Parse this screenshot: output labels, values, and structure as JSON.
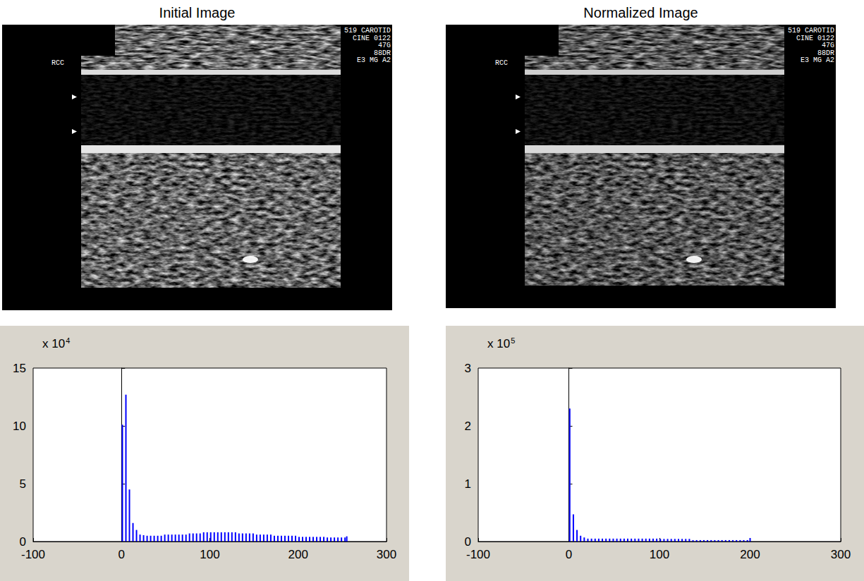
{
  "images": [
    {
      "title": "Initial Image",
      "overlay_text": [
        "519 CAROTID",
        "CINE 0122",
        "47G",
        "88DR",
        "E3 MG A2"
      ],
      "side_label": "RCC"
    },
    {
      "title": "Normalized Image",
      "overlay_text": [
        "519 CAROTID",
        "CINE 0122",
        "47G",
        "88DR",
        "E3 MG A2"
      ],
      "side_label": "RCC"
    }
  ],
  "chart_data": [
    {
      "type": "bar",
      "y_multiplier": {
        "base": "x 10",
        "exponent": 4
      },
      "x": [
        1,
        5,
        9,
        13,
        17,
        21,
        25,
        29,
        33,
        37,
        41,
        45,
        49,
        53,
        57,
        61,
        65,
        69,
        73,
        77,
        81,
        85,
        89,
        93,
        97,
        101,
        105,
        109,
        113,
        117,
        121,
        125,
        129,
        133,
        137,
        141,
        145,
        149,
        153,
        157,
        161,
        165,
        169,
        173,
        177,
        181,
        185,
        189,
        193,
        197,
        201,
        205,
        209,
        213,
        217,
        221,
        225,
        229,
        233,
        237,
        241,
        245,
        249,
        253,
        255
      ],
      "values": [
        10.1,
        12.7,
        4.5,
        1.6,
        1.0,
        0.6,
        0.55,
        0.5,
        0.5,
        0.5,
        0.5,
        0.5,
        0.6,
        0.6,
        0.6,
        0.6,
        0.6,
        0.6,
        0.6,
        0.7,
        0.7,
        0.7,
        0.7,
        0.8,
        0.8,
        0.8,
        0.8,
        0.8,
        0.8,
        0.8,
        0.8,
        0.8,
        0.8,
        0.7,
        0.7,
        0.7,
        0.7,
        0.7,
        0.6,
        0.6,
        0.6,
        0.6,
        0.6,
        0.5,
        0.5,
        0.5,
        0.5,
        0.5,
        0.5,
        0.5,
        0.4,
        0.4,
        0.4,
        0.4,
        0.4,
        0.4,
        0.4,
        0.4,
        0.35,
        0.35,
        0.35,
        0.35,
        0.35,
        0.35,
        0.45
      ],
      "color": "#0000ff",
      "xlim": [
        -100,
        300
      ],
      "xticks": [
        -100,
        0,
        100,
        200,
        300
      ],
      "ylim": [
        0,
        15
      ],
      "yticks": [
        0,
        5,
        10,
        15
      ],
      "grid": false
    },
    {
      "type": "bar",
      "y_multiplier": {
        "base": "x 10",
        "exponent": 5
      },
      "x": [
        1,
        5,
        9,
        13,
        17,
        21,
        25,
        29,
        33,
        37,
        41,
        45,
        49,
        53,
        57,
        61,
        65,
        69,
        73,
        77,
        81,
        85,
        89,
        93,
        97,
        101,
        105,
        109,
        113,
        117,
        121,
        125,
        129,
        133,
        137,
        141,
        145,
        149,
        153,
        157,
        161,
        165,
        169,
        173,
        177,
        181,
        185,
        189,
        193,
        197,
        200
      ],
      "values": [
        2.3,
        0.47,
        0.2,
        0.1,
        0.07,
        0.05,
        0.05,
        0.05,
        0.05,
        0.05,
        0.05,
        0.05,
        0.05,
        0.05,
        0.05,
        0.05,
        0.05,
        0.05,
        0.05,
        0.05,
        0.05,
        0.05,
        0.05,
        0.05,
        0.05,
        0.045,
        0.045,
        0.045,
        0.045,
        0.045,
        0.045,
        0.045,
        0.045,
        0.045,
        0.025,
        0.025,
        0.025,
        0.025,
        0.025,
        0.025,
        0.025,
        0.025,
        0.025,
        0.025,
        0.025,
        0.025,
        0.025,
        0.025,
        0.025,
        0.025,
        0.06
      ],
      "color": "#0000ff",
      "xlim": [
        -100,
        300
      ],
      "xticks": [
        -100,
        0,
        100,
        200,
        300
      ],
      "ylim": [
        0,
        3
      ],
      "yticks": [
        0,
        1,
        2,
        3
      ],
      "grid": false
    }
  ]
}
